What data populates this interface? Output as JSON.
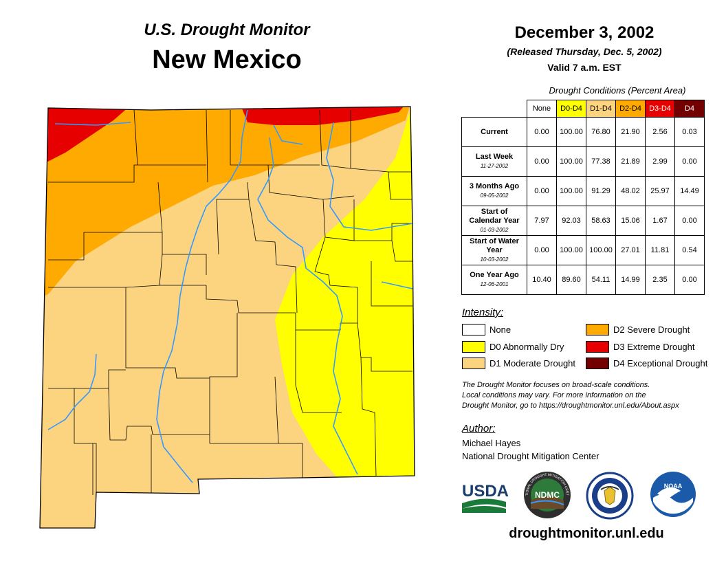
{
  "header": {
    "subtitle": "U.S. Drought Monitor",
    "state": "New Mexico",
    "date": "December 3, 2002",
    "released": "(Released Thursday, Dec. 5, 2002)",
    "valid": "Valid 7 a.m. EST"
  },
  "table": {
    "title": "Drought Conditions (Percent Area)",
    "columns": [
      {
        "label": "None",
        "bg": "#ffffff",
        "fg": "#000000"
      },
      {
        "label": "D0-D4",
        "bg": "#ffff00",
        "fg": "#000000"
      },
      {
        "label": "D1-D4",
        "bg": "#fcd37f",
        "fg": "#000000"
      },
      {
        "label": "D2-D4",
        "bg": "#ffaa00",
        "fg": "#000000"
      },
      {
        "label": "D3-D4",
        "bg": "#e60000",
        "fg": "#ffffff"
      },
      {
        "label": "D4",
        "bg": "#730000",
        "fg": "#ffffff"
      }
    ],
    "rows": [
      {
        "label": "Current",
        "date": "",
        "values": [
          "0.00",
          "100.00",
          "76.80",
          "21.90",
          "2.56",
          "0.03"
        ]
      },
      {
        "label": "Last Week",
        "date": "11-27-2002",
        "values": [
          "0.00",
          "100.00",
          "77.38",
          "21.89",
          "2.99",
          "0.00"
        ]
      },
      {
        "label": "3 Months Ago",
        "date": "09-05-2002",
        "values": [
          "0.00",
          "100.00",
          "91.29",
          "48.02",
          "25.97",
          "14.49"
        ]
      },
      {
        "label": "Start of Calendar Year",
        "date": "01-03-2002",
        "values": [
          "7.97",
          "92.03",
          "58.63",
          "15.06",
          "1.67",
          "0.00"
        ]
      },
      {
        "label": "Start of Water Year",
        "date": "10-03-2002",
        "values": [
          "0.00",
          "100.00",
          "100.00",
          "27.01",
          "11.81",
          "0.54"
        ]
      },
      {
        "label": "One Year Ago",
        "date": "12-06-2001",
        "values": [
          "10.40",
          "89.60",
          "54.11",
          "14.99",
          "2.35",
          "0.00"
        ]
      }
    ]
  },
  "legend": {
    "title": "Intensity:",
    "items": [
      {
        "label": "None",
        "color": "#ffffff"
      },
      {
        "label": "D0 Abnormally Dry",
        "color": "#ffff00"
      },
      {
        "label": "D1 Moderate Drought",
        "color": "#fcd37f"
      },
      {
        "label": "D2 Severe Drought",
        "color": "#ffaa00"
      },
      {
        "label": "D3 Extreme Drought",
        "color": "#e60000"
      },
      {
        "label": "D4 Exceptional Drought",
        "color": "#730000"
      }
    ]
  },
  "note": {
    "line1": "The Drought Monitor focuses on broad-scale conditions.",
    "line2": "Local conditions may vary. For more information on the",
    "line3": "Drought Monitor, go to https://droughtmonitor.unl.edu/About.aspx"
  },
  "author": {
    "title": "Author:",
    "name": "Michael Hayes",
    "org": "National Drought Mitigation Center"
  },
  "logos": {
    "usda": "USDA",
    "ndmc": "NDMC",
    "noaa": "NOAA",
    "ndmc_ring": "NATIONAL DROUGHT MITIGATION CENTER"
  },
  "url": "droughtmonitor.unl.edu",
  "map_colors": {
    "d0": "#ffff00",
    "d1": "#fcd37f",
    "d2": "#ffaa00",
    "d3": "#e60000",
    "d4": "#730000",
    "river": "#3399ff",
    "county": "#000000"
  }
}
